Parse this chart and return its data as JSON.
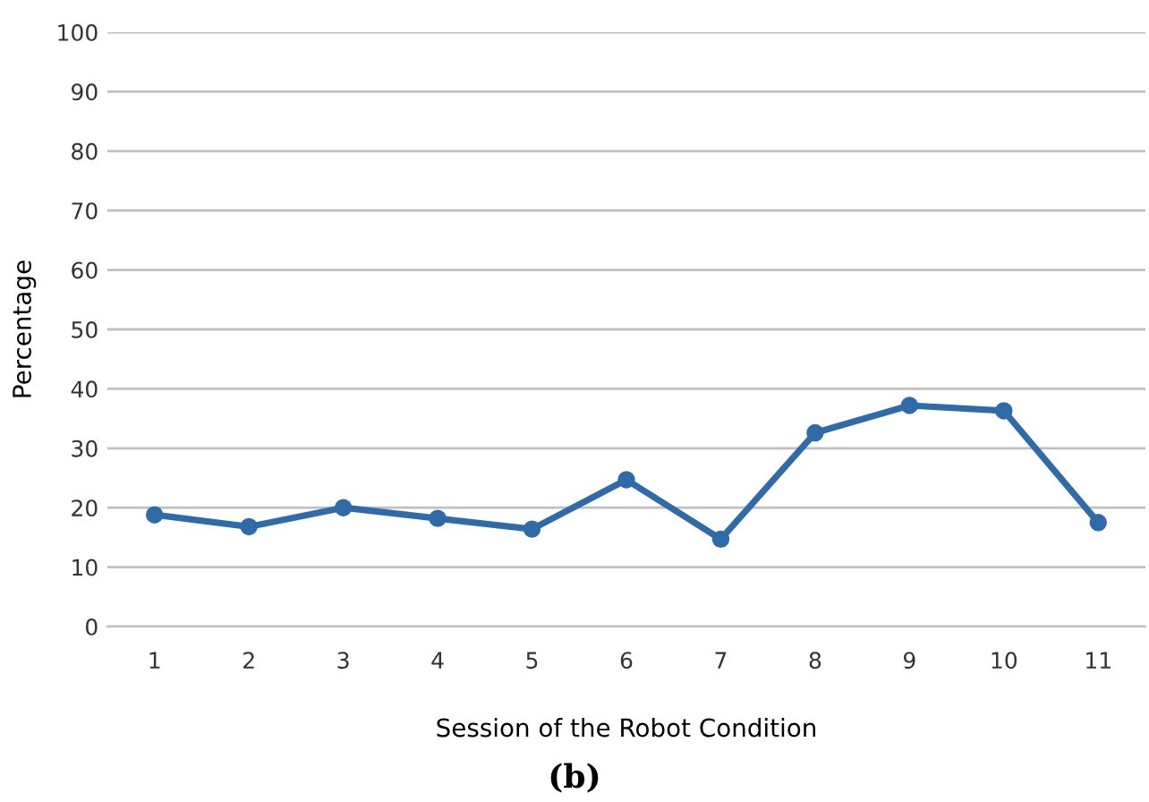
{
  "chart_data": {
    "type": "line",
    "categories": [
      "1",
      "2",
      "3",
      "4",
      "5",
      "6",
      "7",
      "8",
      "9",
      "10",
      "11"
    ],
    "series": [
      {
        "color": "#2f6ba8",
        "values": [
          18.8,
          16.8,
          20.0,
          18.2,
          16.4,
          24.7,
          14.7,
          32.6,
          37.2,
          36.3,
          17.5
        ]
      }
    ],
    "ylabel": "Percentage",
    "xlabel": "Session of the Robot Condition",
    "annotations": [
      "(b)"
    ],
    "ylim": [
      0,
      100
    ],
    "yticks": [
      0,
      10,
      20,
      30,
      40,
      50,
      60,
      70,
      80,
      90,
      100
    ],
    "grid": "y",
    "marker": "circle",
    "line_style": "solid",
    "legend": false
  }
}
